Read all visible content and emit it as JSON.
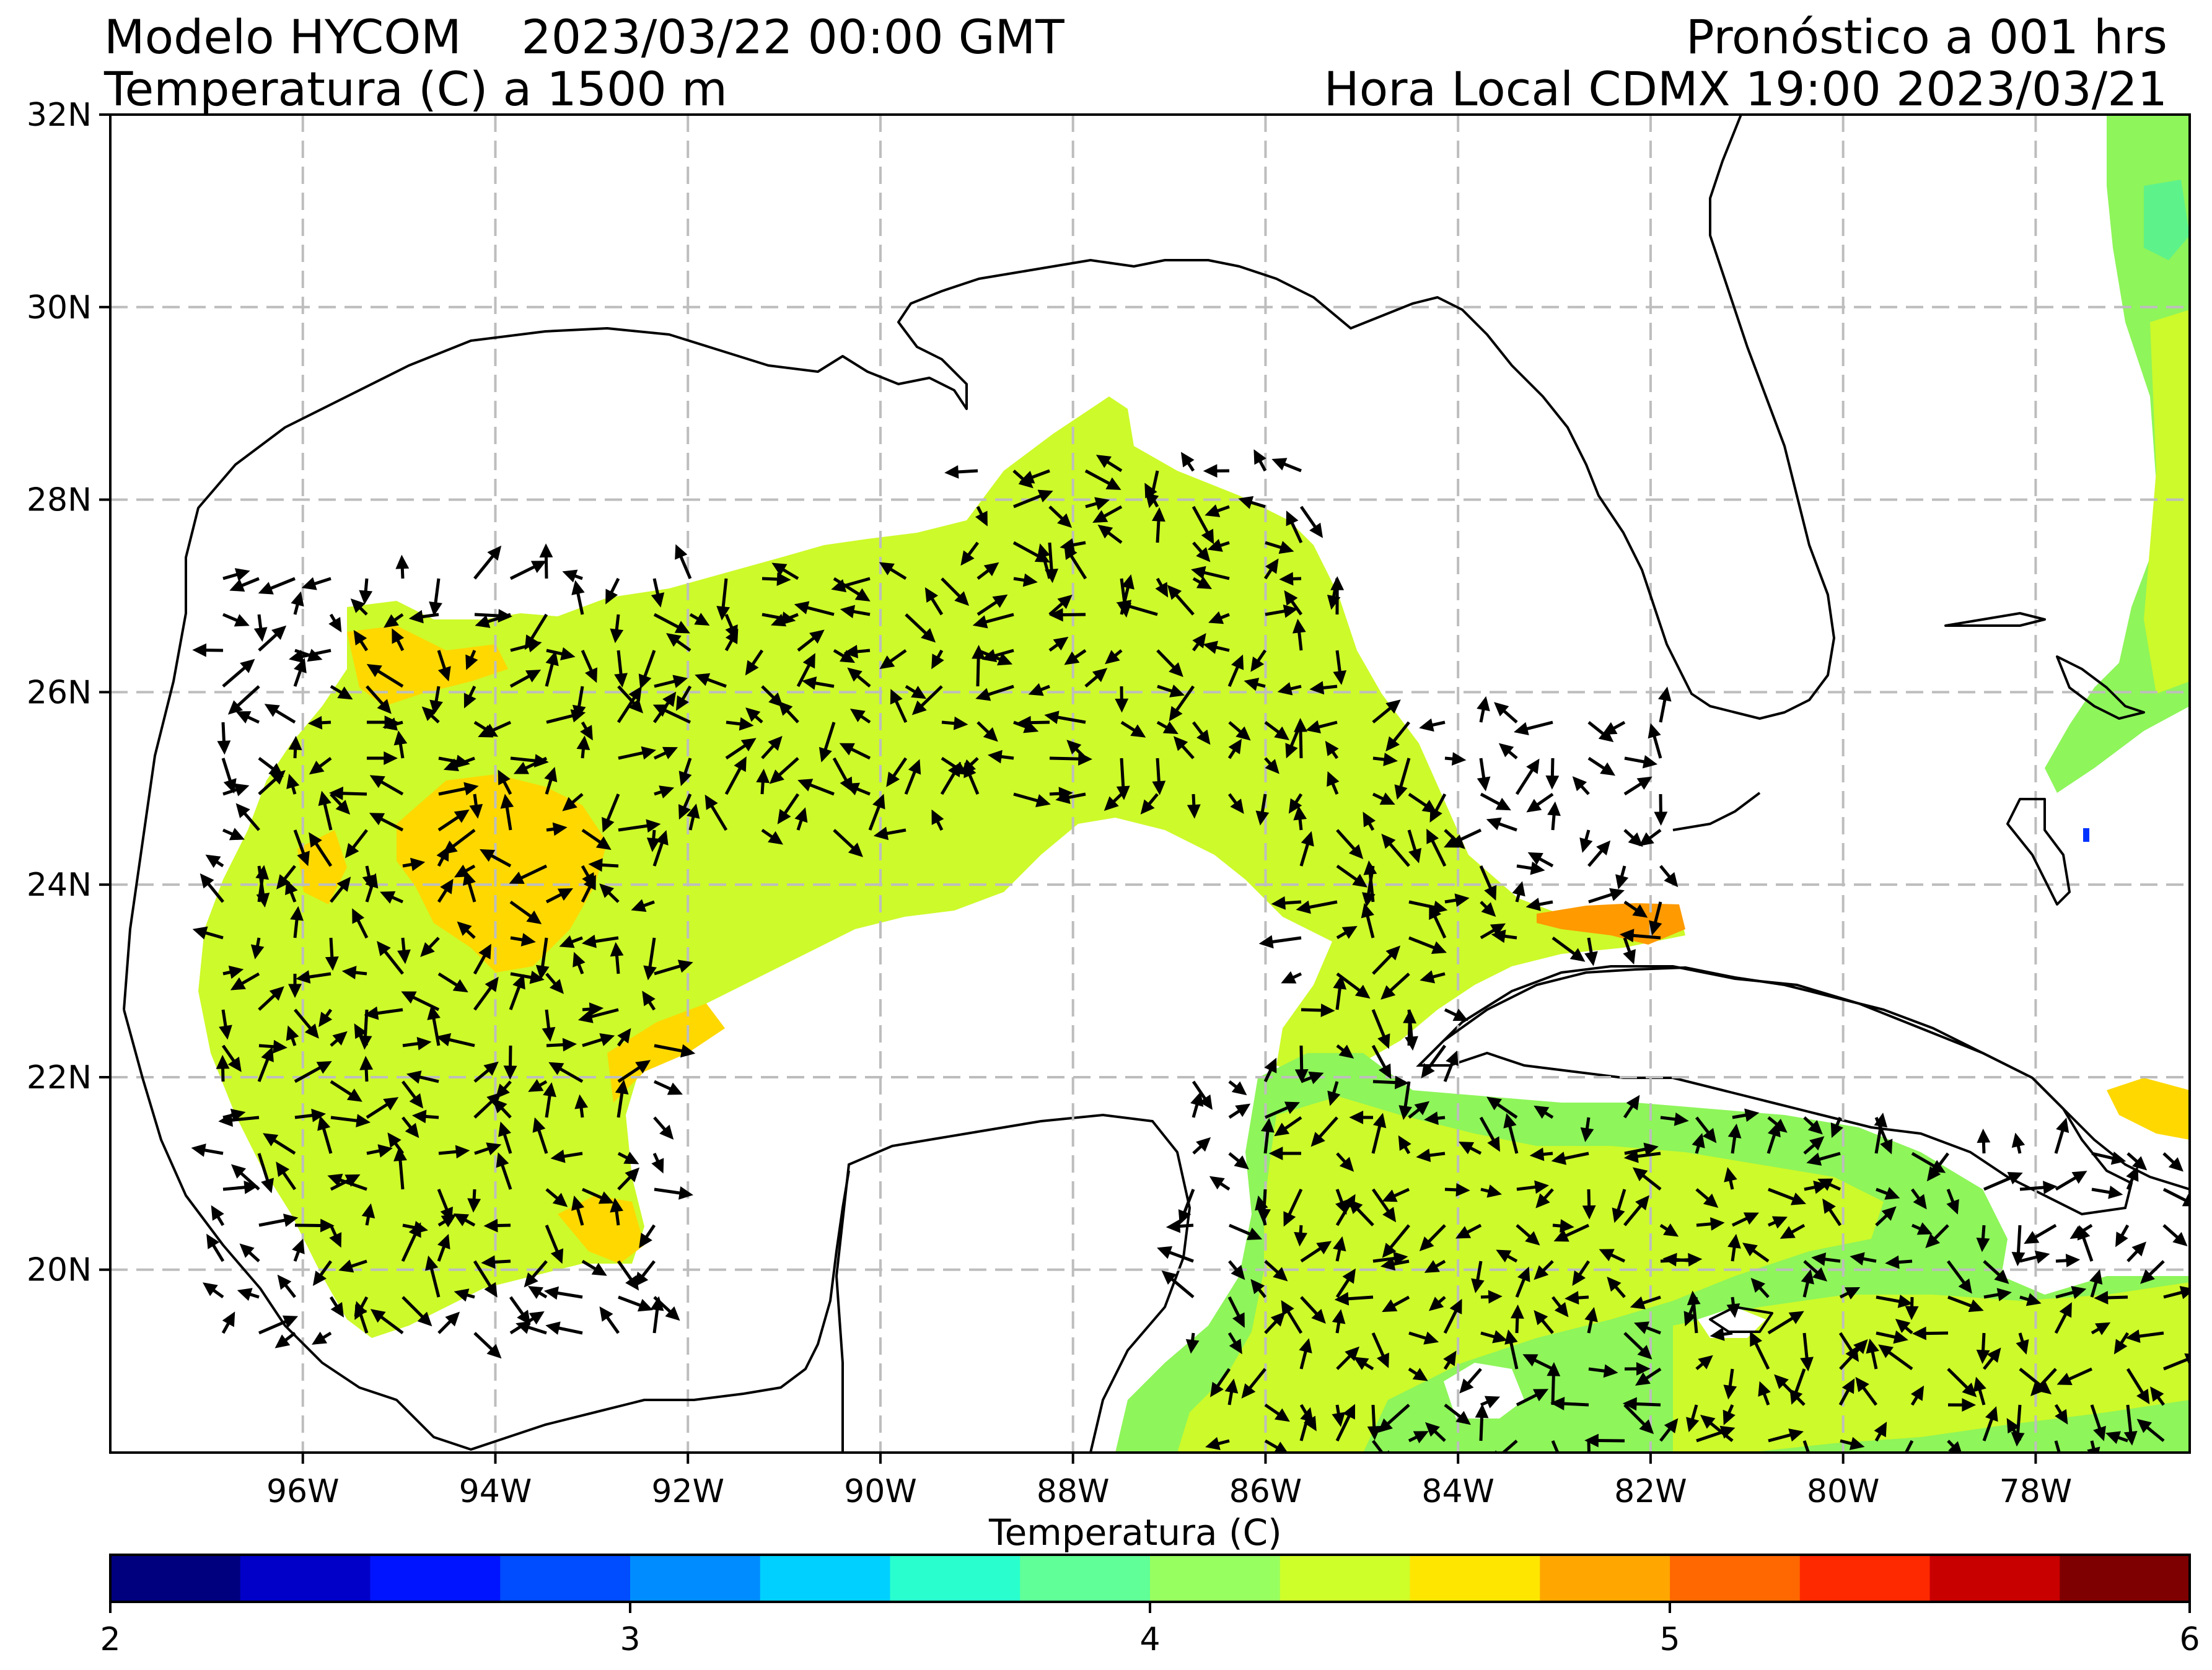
{
  "header": {
    "model": "Modelo HYCOM",
    "datetime": "2023/03/22 00:00 GMT",
    "variable": "Temperatura (C) a 1500 m",
    "forecast": "Pronóstico a 001 hrs",
    "local_time": "Hora Local CDMX 19:00 2023/03/21"
  },
  "map": {
    "lon_range": [
      -98,
      -76.4
    ],
    "lat_range": [
      18.1,
      32
    ],
    "grid": true,
    "lon_ticks": [
      {
        "value": -96,
        "label": "96W"
      },
      {
        "value": -94,
        "label": "94W"
      },
      {
        "value": -92,
        "label": "92W"
      },
      {
        "value": -90,
        "label": "90W"
      },
      {
        "value": -88,
        "label": "88W"
      },
      {
        "value": -86,
        "label": "86W"
      },
      {
        "value": -84,
        "label": "84W"
      },
      {
        "value": -82,
        "label": "82W"
      },
      {
        "value": -80,
        "label": "80W"
      },
      {
        "value": -78,
        "label": "78W"
      }
    ],
    "lat_ticks": [
      {
        "value": 20,
        "label": "20N"
      },
      {
        "value": 22,
        "label": "22N"
      },
      {
        "value": 24,
        "label": "24N"
      },
      {
        "value": 26,
        "label": "26N"
      },
      {
        "value": 28,
        "label": "28N"
      },
      {
        "value": 30,
        "label": "30N"
      },
      {
        "value": 32,
        "label": "32N"
      }
    ],
    "field_colors": {
      "yellow_green": "#cdfa2a",
      "yellow": "#ffd800",
      "orange": "#ff8c00",
      "light_green": "#8ef55a",
      "green": "#5ef28a",
      "teal": "#27f0c8",
      "blue": "#0033ff",
      "coast": "#000000",
      "grid": "#bdbdbd",
      "arrow": "#000000"
    }
  },
  "colorbar": {
    "label": "Temperatura (C)",
    "min": 2,
    "max": 6,
    "colors": [
      "#00007f",
      "#0000c8",
      "#0014ff",
      "#004cff",
      "#008cff",
      "#00d0ff",
      "#29ffce",
      "#60ff97",
      "#97ff60",
      "#ceff29",
      "#ffe600",
      "#ffa700",
      "#ff6800",
      "#ff2900",
      "#c80000",
      "#7f0000"
    ],
    "ticks": [
      {
        "value": 2,
        "label": "2"
      },
      {
        "value": 3,
        "label": "3"
      },
      {
        "value": 4,
        "label": "4"
      },
      {
        "value": 5,
        "label": "5"
      },
      {
        "value": 6,
        "label": "6"
      }
    ]
  }
}
